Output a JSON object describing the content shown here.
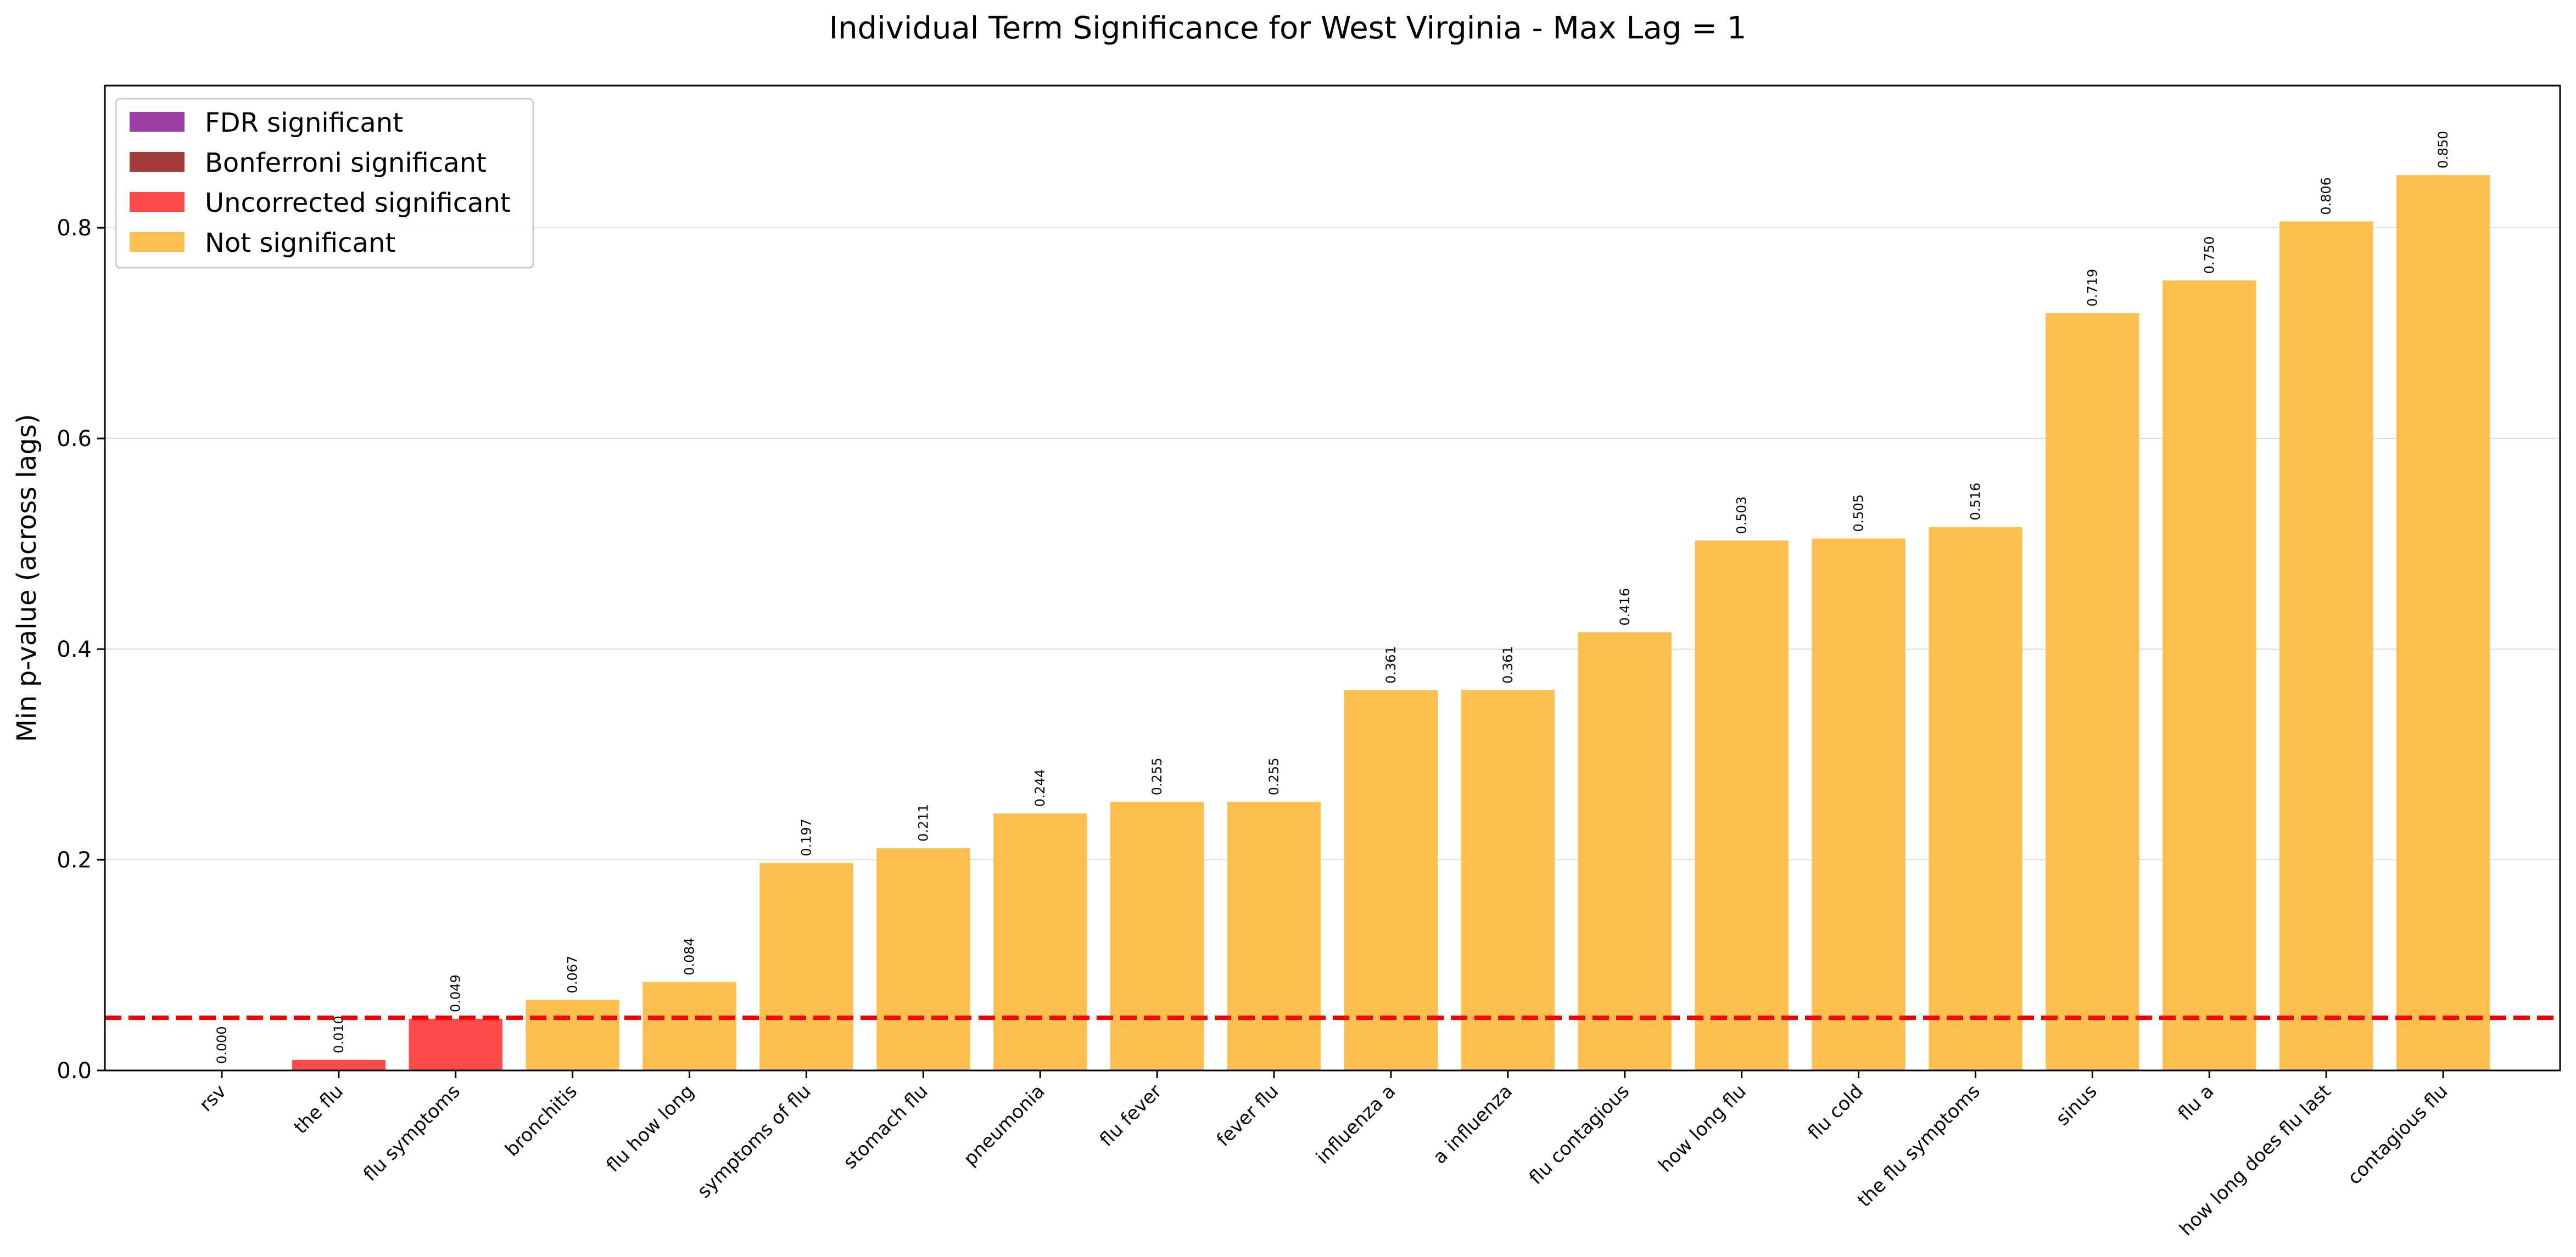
{
  "chart_data": {
    "type": "bar",
    "title": "Individual Term Significance for West Virginia - Max Lag = 1",
    "xlabel": "",
    "ylabel": "Min p-value (across lags)",
    "ylim": [
      0,
      0.935
    ],
    "yticks": [
      0.0,
      0.2,
      0.4,
      0.6,
      0.8
    ],
    "ytick_labels": [
      "0.0",
      "0.2",
      "0.4",
      "0.6",
      "0.8"
    ],
    "grid": "y",
    "threshold": 0.05,
    "threshold_color": "#ff0000",
    "legend_position": "top-left",
    "legend": [
      {
        "label": "FDR significant",
        "color": "#9b3fa5"
      },
      {
        "label": "Bonferroni significant",
        "color": "#a23a3a"
      },
      {
        "label": "Uncorrected significant",
        "color": "#ff4a4a"
      },
      {
        "label": "Not significant",
        "color": "#ffbf4f"
      }
    ],
    "categories": [
      "rsv",
      "the flu",
      "flu symptoms",
      "bronchitis",
      "flu how long",
      "symptoms of flu",
      "stomach flu",
      "pneumonia",
      "flu fever",
      "fever flu",
      "influenza a",
      "a influenza",
      "flu contagious",
      "how long flu",
      "flu cold",
      "the flu symptoms",
      "sinus",
      "flu a",
      "how long does flu last",
      "contagious flu"
    ],
    "values": [
      0.0,
      0.01,
      0.049,
      0.067,
      0.084,
      0.197,
      0.211,
      0.244,
      0.255,
      0.255,
      0.361,
      0.361,
      0.416,
      0.503,
      0.505,
      0.516,
      0.719,
      0.75,
      0.806,
      0.85
    ],
    "value_labels": [
      "0.000",
      "0.010",
      "0.049",
      "0.067",
      "0.084",
      "0.197",
      "0.211",
      "0.244",
      "0.255",
      "0.255",
      "0.361",
      "0.361",
      "0.416",
      "0.503",
      "0.505",
      "0.516",
      "0.719",
      "0.750",
      "0.806",
      "0.850"
    ],
    "significance": [
      "uncorrected",
      "uncorrected",
      "uncorrected",
      "none",
      "none",
      "none",
      "none",
      "none",
      "none",
      "none",
      "none",
      "none",
      "none",
      "none",
      "none",
      "none",
      "none",
      "none",
      "none",
      "none"
    ]
  }
}
